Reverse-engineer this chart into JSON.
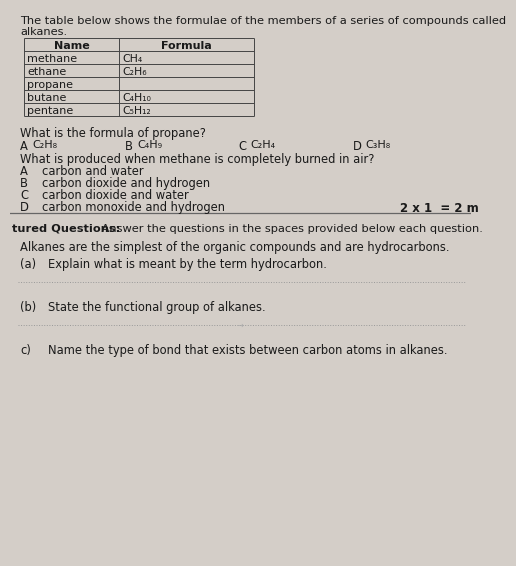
{
  "bg_color": "#d4cec8",
  "table_headers": [
    "Name",
    "Formula"
  ],
  "table_rows": [
    [
      "methane",
      "CH₄"
    ],
    [
      "ethane",
      "C₂H₆"
    ],
    [
      "propane",
      ""
    ],
    [
      "butane",
      "C₄H₁₀"
    ],
    [
      "pentane",
      "C₅H₁₂"
    ]
  ],
  "q1_text": "What is the formula of propane?",
  "q1_options": [
    [
      "A",
      "C₂H₈"
    ],
    [
      "B",
      "C₄H₉"
    ],
    [
      "C",
      "C₂H₄"
    ],
    [
      "D",
      "C₃H₈"
    ]
  ],
  "q2_text": "What is produced when methane is completely burned in air?",
  "q2_options": [
    [
      "A",
      "carbon and water"
    ],
    [
      "B",
      "carbon dioxide and hydrogen"
    ],
    [
      "C",
      "carbon dioxide and water"
    ],
    [
      "D",
      "carbon monoxide and hydrogen"
    ]
  ],
  "score_text": "2 x 1  = 2 m",
  "section_header_bold": "tured Questions:",
  "section_header_rest": " Answer the questions in the spaces provided below each question.",
  "section_intro": "Alkanes are the simplest of the organic compounds and are hydrocarbons.",
  "part_a_label": "(a)",
  "part_a_text": "Explain what is meant by the term hydrocarbon.",
  "part_b_label": "(b)",
  "part_b_text": "State the functional group of alkanes.",
  "part_c_label": "c)",
  "part_c_text": "Name the type of bond that exists between carbon atoms in alkanes.",
  "dotted_line_color": "#999999",
  "table_border_color": "#444444",
  "text_color": "#1a1a1a",
  "section_divider_color": "#666666",
  "top_line1": "The table below shows the formulae of the members of a series of compounds called",
  "top_line2": "alkanes."
}
